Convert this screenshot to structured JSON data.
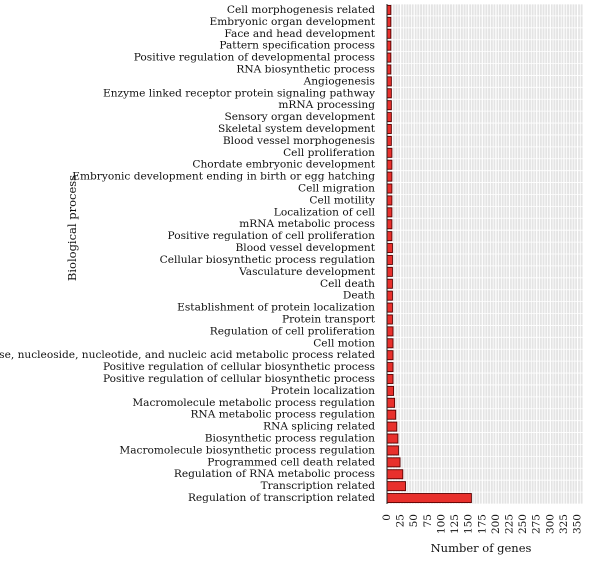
{
  "chart_data": {
    "type": "bar",
    "orientation": "horizontal",
    "title": "",
    "xlabel": "Number of genes",
    "ylabel": "Biological process",
    "xlim": [
      0,
      360
    ],
    "xticks": [
      0,
      25,
      50,
      75,
      100,
      125,
      150,
      175,
      200,
      225,
      250,
      275,
      300,
      325,
      350
    ],
    "grid": true,
    "legend": "none",
    "bar_color": "#e8302c",
    "bar_edge_color": "#5a0000",
    "background_color": "#e4e4e4",
    "grid_color": "#ffffff",
    "categories": [
      "Cell morphogenesis related",
      "Embryonic organ development",
      "Face and head development",
      "Pattern specification process",
      "Positive regulation of developmental process",
      "RNA biosynthetic process",
      "Angiogenesis",
      "Enzyme linked receptor protein signaling pathway",
      "mRNA processing",
      "Sensory organ development",
      "Skeletal system development",
      "Blood vessel morphogenesis",
      "Cell proliferation",
      "Chordate embryonic development",
      "Embryonic development ending in birth or egg hatching",
      "Cell migration",
      "Cell motility",
      "Localization of cell",
      "mRNA metabolic process",
      "Positive regulation of cell proliferation",
      "Blood vessel development",
      "Cellular biosynthetic process regulation",
      "Vasculature development",
      "Cell death",
      "Death",
      "Establishment of protein localization",
      "Protein transport",
      "Regulation of cell proliferation",
      "Cell motion",
      "Nucleobase, nucleoside, nucleotide, and nucleic acid metabolic process related",
      "Positive regulation of cellular biosynthetic process",
      "Positive regulation of cellular biosynthetic process",
      "Protein localization",
      "Macromolecule metabolic process regulation",
      "RNA metabolic process regulation",
      "RNA splicing related",
      "Biosynthetic process regulation",
      "Macromolecule biosynthetic process regulation",
      "Programmed cell death related",
      "Regulation of RNA metabolic process",
      "Transcription related",
      "Regulation of transcription related"
    ],
    "values": [
      7,
      7,
      7,
      7,
      7,
      7,
      8,
      8,
      8,
      8,
      8,
      8,
      9,
      9,
      9,
      9,
      9,
      9,
      9,
      9,
      10,
      10,
      10,
      10,
      10,
      10,
      10,
      11,
      11,
      11,
      11,
      11,
      12,
      14,
      16,
      18,
      20,
      21,
      24,
      29,
      34,
      155
    ]
  }
}
